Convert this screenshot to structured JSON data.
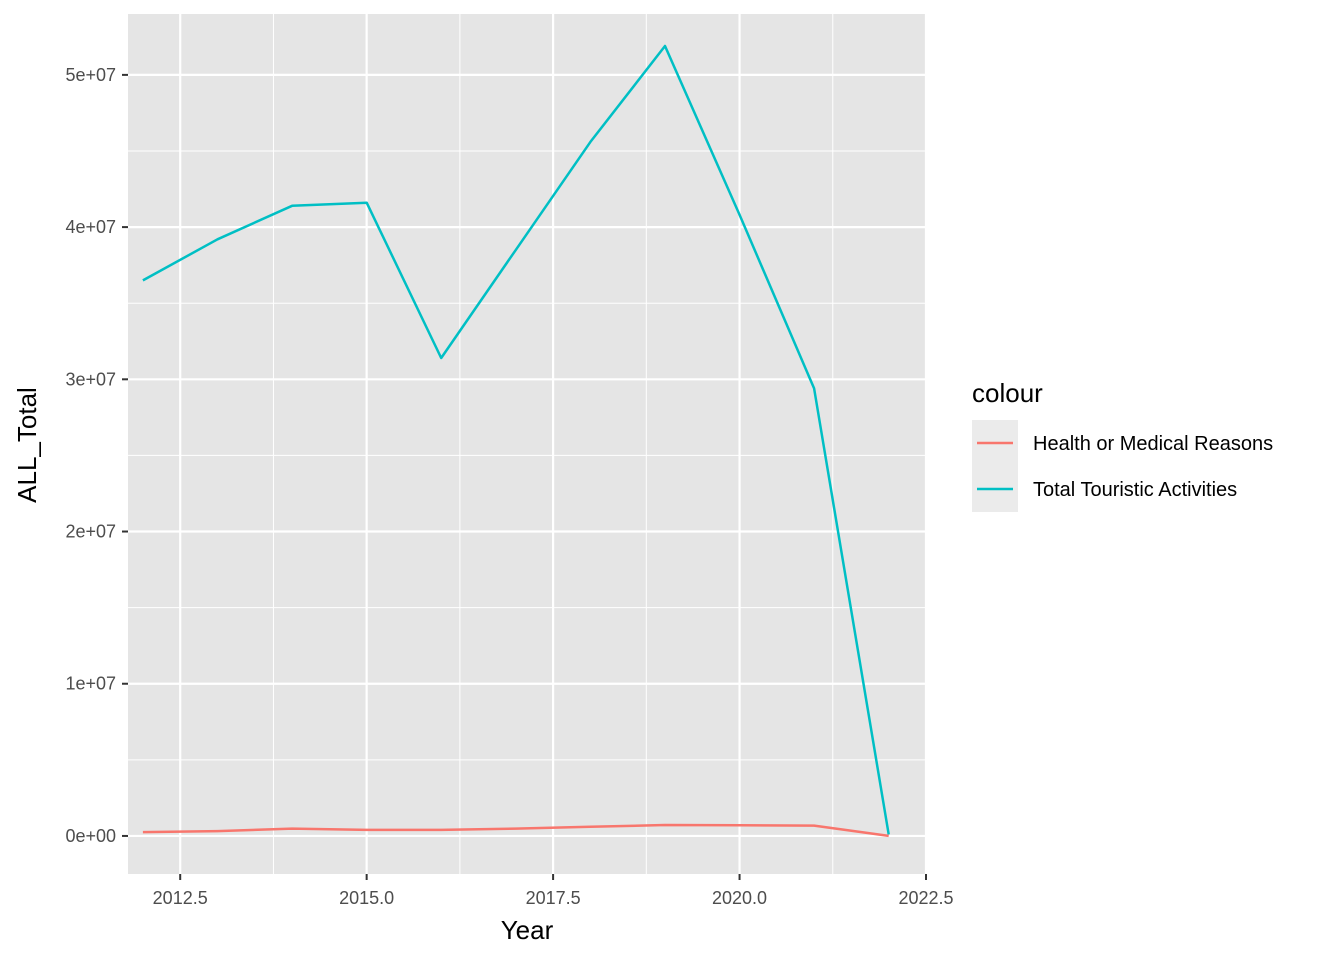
{
  "chart_data": {
    "type": "line",
    "title": "",
    "xlabel": "Year",
    "ylabel": "ALL_Total",
    "xlim": [
      2011.8,
      2022.5
    ],
    "ylim": [
      -2500000,
      54000000
    ],
    "x_ticks": [
      2012.5,
      2015.0,
      2017.5,
      2020.0,
      2022.5
    ],
    "x_tick_labels": [
      "2012.5",
      "2015.0",
      "2017.5",
      "2020.0",
      "2022.5"
    ],
    "y_ticks": [
      0,
      10000000,
      20000000,
      30000000,
      40000000,
      50000000
    ],
    "y_tick_labels": [
      "0e+00",
      "1e+07",
      "2e+07",
      "3e+07",
      "4e+07",
      "5e+07"
    ],
    "grid": true,
    "panel_background": "#e5e5e5",
    "grid_color": "#ffffff",
    "legend": {
      "title": "colour",
      "placement": "right"
    },
    "x": [
      2012,
      2013,
      2014,
      2015,
      2016,
      2017,
      2018,
      2019,
      2020,
      2021,
      2022
    ],
    "series": [
      {
        "name": "Health or Medical Reasons",
        "color": "#f8766d",
        "values": [
          250000,
          320000,
          480000,
          400000,
          400000,
          480000,
          600000,
          720000,
          700000,
          680000,
          0
        ]
      },
      {
        "name": "Total Touristic Activities",
        "color": "#00bfc4",
        "values": [
          36500000,
          39200000,
          41400000,
          41600000,
          31400000,
          38500000,
          45600000,
          51900000,
          40800000,
          29400000,
          100000
        ]
      }
    ]
  }
}
